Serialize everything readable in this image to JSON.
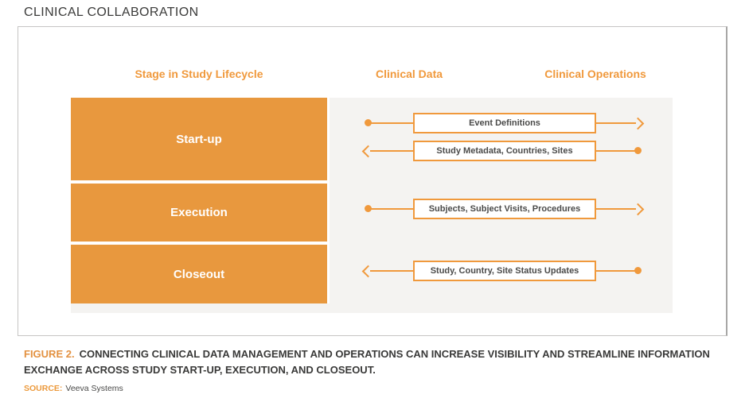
{
  "page_title": "CLINICAL COLLABORATION",
  "figure": {
    "columns": {
      "stage": "Stage in Study Lifecycle",
      "clinical_data": "Clinical Data",
      "clinical_operations": "Clinical Operations"
    },
    "stages": [
      {
        "label": "Start-up"
      },
      {
        "label": "Execution"
      },
      {
        "label": "Closeout"
      }
    ],
    "flows": [
      {
        "label": "Event Definitions",
        "stage": "Start-up",
        "direction": "clinical-data-to-clinical-operations"
      },
      {
        "label": "Study Metadata, Countries, Sites",
        "stage": "Start-up",
        "direction": "clinical-operations-to-clinical-data"
      },
      {
        "label": "Subjects, Subject Visits, Procedures",
        "stage": "Execution",
        "direction": "clinical-data-to-clinical-operations"
      },
      {
        "label": "Study, Country, Site Status Updates",
        "stage": "Closeout",
        "direction": "clinical-operations-to-clinical-data"
      }
    ]
  },
  "caption": {
    "figure_label": "FIGURE 2.",
    "text": "CONNECTING CLINICAL DATA MANAGEMENT AND OPERATIONS CAN INCREASE VISIBILITY AND STREAMLINE INFORMATION EXCHANGE ACROSS STUDY START-UP, EXECUTION, AND CLOSEOUT."
  },
  "source": {
    "label": "SOURCE:",
    "text": "Veeva Systems"
  },
  "colors": {
    "accent_orange": "#F0993C",
    "stage_block_orange": "#E8983E",
    "panel_gray": "#F4F3F1",
    "frame_border_gray": "#C6C5C4",
    "title_text": "#3B3B3A",
    "flow_box_text": "#4A4A49",
    "figure_label_orange": "#E39140"
  }
}
